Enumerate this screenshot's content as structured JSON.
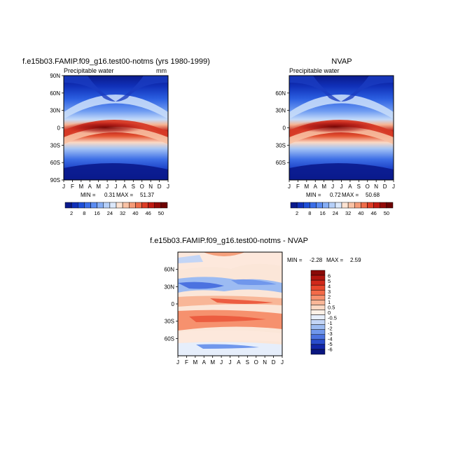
{
  "figure": {
    "panel1_title": "f.e15b03.FAMIP.f09_g16.test00-notms (yrs 1980-1999)",
    "panel2_title": "NVAP",
    "panel3_title": "f.e15b03.FAMIP.f09_g16.test00-notms - NVAP"
  },
  "chart_data": [
    {
      "type": "heatmap",
      "title": "f.e15b03.FAMIP.f09_g16.test00-notms (yrs 1980-1999)",
      "subtitle_left": "Precipitable water",
      "units": "mm",
      "x_ticks": [
        "J",
        "F",
        "M",
        "A",
        "M",
        "J",
        "J",
        "A",
        "S",
        "O",
        "N",
        "D",
        "J"
      ],
      "y_ticks": [
        "90N",
        "60N",
        "30N",
        "0",
        "30S",
        "60S",
        "90S"
      ],
      "min_label": "MIN =",
      "min_value": "0.31",
      "max_label": "MAX =",
      "max_value": "51.37",
      "colorbar_labels": [
        "2",
        "8",
        "16",
        "24",
        "32",
        "40",
        "46",
        "50"
      ],
      "colors": [
        "#0a1a8c",
        "#1030b8",
        "#1e4fd8",
        "#3a6ee8",
        "#5b8cf2",
        "#86aef5",
        "#b5cff8",
        "#dbe8fb",
        "#fde3d2",
        "#f9c2a5",
        "#f59b78",
        "#ee6d4a",
        "#dd3c26",
        "#c01a12",
        "#930a08",
        "#6e0202"
      ]
    },
    {
      "type": "heatmap",
      "title": "NVAP",
      "subtitle_left": "Precipitable water",
      "x_ticks": [
        "J",
        "F",
        "M",
        "A",
        "M",
        "J",
        "J",
        "A",
        "S",
        "O",
        "N",
        "D",
        "J"
      ],
      "y_ticks": [
        "60N",
        "30N",
        "0",
        "30S",
        "60S"
      ],
      "min_label": "MIN =",
      "min_value": "0.72",
      "max_label": "MAX =",
      "max_value": "50.68",
      "colorbar_labels": [
        "2",
        "8",
        "16",
        "24",
        "32",
        "40",
        "46",
        "50"
      ]
    },
    {
      "type": "heatmap",
      "title": "f.e15b03.FAMIP.f09_g16.test00-notms - NVAP",
      "x_ticks": [
        "J",
        "F",
        "M",
        "A",
        "M",
        "J",
        "J",
        "A",
        "S",
        "O",
        "N",
        "D",
        "J"
      ],
      "y_ticks": [
        "60N",
        "30N",
        "0",
        "30S",
        "60S"
      ],
      "min_label": "MIN =",
      "min_value": "-2.28",
      "max_label": "MAX =",
      "max_value": "2.59",
      "colorbar_labels": [
        "6",
        "5",
        "4",
        "3",
        "2",
        "1",
        "0.5",
        "0",
        "-0.5",
        "-1",
        "-2",
        "-3",
        "-4",
        "-5",
        "-6"
      ],
      "colors": [
        "#8a0a08",
        "#b0150f",
        "#d0281a",
        "#e8472c",
        "#f36a48",
        "#f6916e",
        "#f8b697",
        "#fbd9c4",
        "#fdf0e6",
        "#e6eefb",
        "#c3d5f6",
        "#9cbbf2",
        "#7097ec",
        "#4b72e0",
        "#2a4ccc",
        "#1226a8",
        "#0a1680"
      ]
    }
  ]
}
